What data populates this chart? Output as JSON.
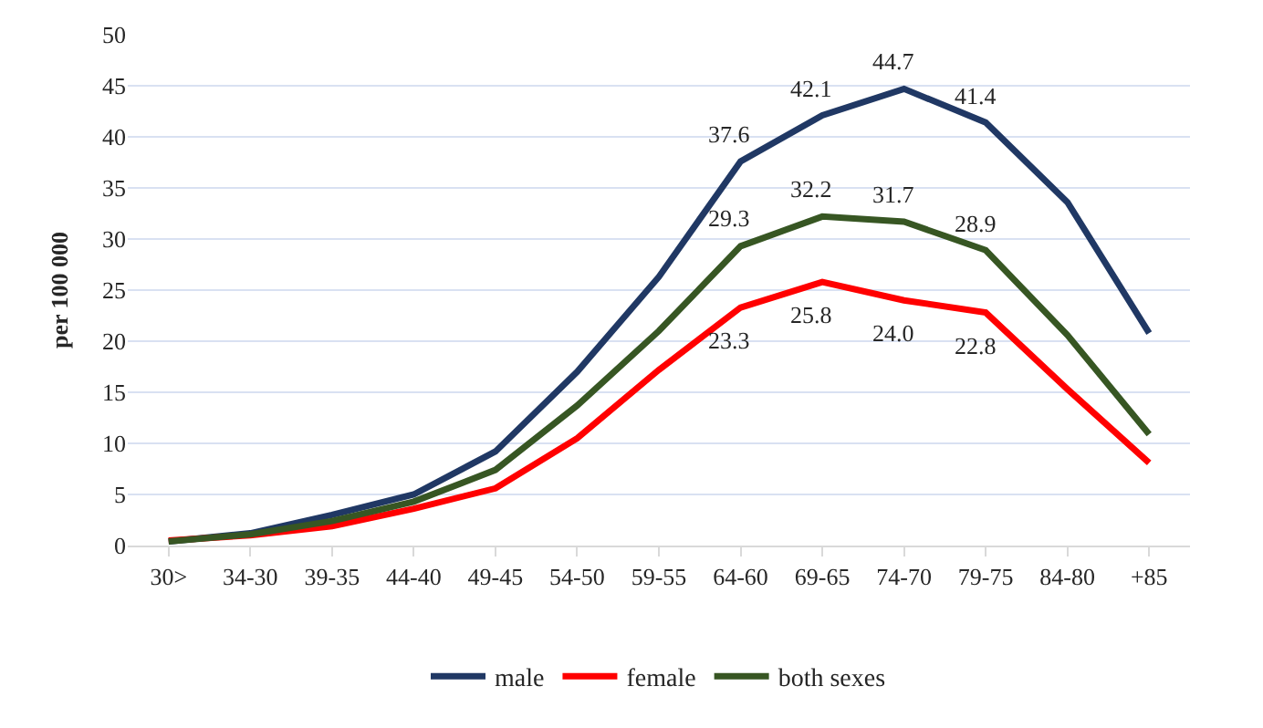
{
  "chart_data": {
    "type": "line",
    "ylabel": "per 100 000",
    "categories": [
      "30>",
      "34-30",
      "39-35",
      "44-40",
      "49-45",
      "54-50",
      "59-55",
      "64-60",
      "69-65",
      "74-70",
      "79-75",
      "84-80",
      "+85"
    ],
    "series": [
      {
        "name": "male",
        "color": "#203864",
        "values": [
          0.4,
          1.2,
          3.0,
          5.0,
          9.2,
          17.0,
          26.3,
          37.6,
          42.1,
          44.7,
          41.4,
          33.6,
          20.8
        ],
        "value_labels": [
          null,
          null,
          null,
          null,
          null,
          null,
          null,
          "37.6",
          "42.1",
          "44.7",
          "41.4",
          null,
          null
        ]
      },
      {
        "name": "female",
        "color": "#ff0000",
        "values": [
          0.5,
          1.0,
          1.9,
          3.6,
          5.6,
          10.5,
          17.2,
          23.3,
          25.8,
          24.0,
          22.8,
          15.3,
          8.1
        ],
        "value_labels": [
          null,
          null,
          null,
          null,
          null,
          null,
          null,
          "23.3",
          "25.8",
          "24.0",
          "22.8",
          null,
          null
        ]
      },
      {
        "name": "both sexes",
        "color": "#375623",
        "values": [
          0.4,
          1.1,
          2.4,
          4.3,
          7.4,
          13.7,
          21.0,
          29.3,
          32.2,
          31.7,
          28.9,
          20.6,
          10.9
        ],
        "value_labels": [
          null,
          null,
          null,
          null,
          null,
          null,
          null,
          "29.3",
          "32.2",
          "31.7",
          "28.9",
          null,
          null
        ]
      }
    ],
    "ylim": [
      0,
      50
    ],
    "yticks": [
      0,
      5,
      10,
      15,
      20,
      25,
      30,
      35,
      40,
      45,
      50
    ],
    "grid": "y",
    "legend": "bottom",
    "marker": "none",
    "line_style": "solid"
  }
}
